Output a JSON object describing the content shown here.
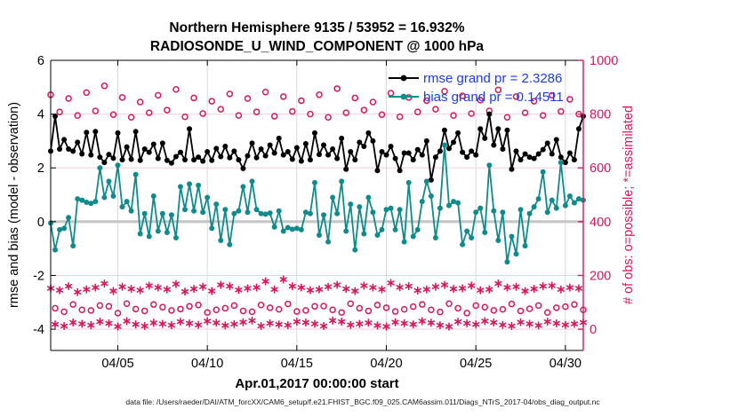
{
  "title": {
    "line1": "Northern Hemisphere 9135 / 53952 = 16.932%",
    "line2": "RADIOSONDE_U_WIND_COMPONENT @ 1000 hPa"
  },
  "xlabel": "Apr.01,2017 00:00:00 start",
  "ylabel_left": "rmse and bias (model - observation)",
  "ylabel_right": "# of obs: o=possible; *=assimilated",
  "caption": "data file: /Users/raeder/DAI/ATM_forcXX/CAM6_setup/f.e21.FHIST_BGC.f09_025.CAM6assim.011/Diags_NTrS_2017-04/obs_diag_output.nc",
  "legend": {
    "entries": [
      {
        "label": "rmse grand pr = 2.3286",
        "series": "rmse",
        "color": "#000000"
      },
      {
        "label": "bias grand pr = 0.14511",
        "series": "bias",
        "color": "#0f8b8b"
      }
    ],
    "text_color": "#1b3af0"
  },
  "colors": {
    "counts": "#d8175a",
    "rmse": "#000000",
    "bias": "#0f8b8b",
    "grid_vertical": "#d6d6d6",
    "grid_horizontal": "#f6cdd9",
    "zero_line": "#c6c6c6",
    "axis_left": "#000000",
    "axis_right": "#d8175a",
    "legend_text": "#1b3af0"
  },
  "chart_data": {
    "type": "line",
    "time_axis": {
      "start_day_of_april": 1.25,
      "step_days": 0.25,
      "n_points": 120,
      "ticks_day_of_april": [
        5,
        10,
        15,
        20,
        25,
        30
      ],
      "tick_labels": [
        "04/05",
        "04/10",
        "04/15",
        "04/20",
        "04/25",
        "04/30"
      ],
      "range_days": [
        1.25,
        31.0
      ]
    },
    "y_left": {
      "ticks": [
        6,
        4,
        2,
        0,
        -2,
        -4
      ],
      "tick_labels": [
        "6",
        "4",
        "2",
        "0",
        "-2",
        "-4"
      ],
      "range": [
        -4.79,
        6
      ]
    },
    "y_right": {
      "ticks": [
        1000,
        800,
        600,
        400,
        200,
        0
      ],
      "tick_labels": [
        "1000",
        "800",
        "600",
        "400",
        "200",
        "0"
      ],
      "range": [
        -79,
        1000
      ]
    },
    "grid": {
      "vertical_at_x_ticks": true,
      "horizontal_pink_at_left_ticks": [
        4,
        2,
        -2,
        -4
      ],
      "bold_zero_line": 0
    },
    "series": [
      {
        "name": "rmse",
        "axis": "left",
        "style": "line-dot",
        "color": "#000000",
        "values": [
          2.62,
          3.92,
          2.7,
          3.05,
          2.7,
          2.62,
          2.95,
          2.52,
          3.32,
          2.48,
          3.35,
          2.4,
          2.2,
          2.5,
          2.36,
          3.3,
          2.3,
          2.78,
          2.32,
          3.35,
          2.28,
          2.7,
          2.58,
          2.88,
          2.35,
          2.92,
          2.28,
          2.18,
          2.42,
          2.58,
          2.3,
          3.45,
          2.3,
          2.4,
          2.25,
          2.6,
          2.28,
          2.72,
          2.42,
          2.8,
          2.38,
          2.62,
          2.3,
          1.98,
          2.45,
          2.92,
          2.38,
          2.7,
          2.45,
          2.85,
          2.55,
          3.1,
          2.48,
          2.6,
          2.32,
          2.75,
          2.25,
          2.9,
          2.3,
          3.3,
          2.5,
          2.85,
          2.48,
          2.7,
          2.35,
          3.1,
          1.95,
          2.6,
          2.3,
          2.95,
          2.8,
          3.3,
          3.0,
          1.9,
          2.6,
          2.48,
          2.8,
          2.35,
          1.9,
          2.55,
          2.55,
          2.3,
          2.68,
          2.48,
          3.0,
          1.55,
          2.4,
          2.62,
          3.4,
          2.72,
          2.95,
          3.3,
          2.58,
          2.4,
          2.62,
          2.48,
          3.45,
          3.1,
          4.0,
          2.85,
          3.45,
          2.7,
          3.4,
          1.95,
          2.62,
          2.3,
          2.52,
          2.4,
          2.35,
          2.52,
          2.68,
          2.92,
          2.52,
          3.05,
          2.4,
          2.2,
          2.55,
          2.3,
          3.45,
          3.92
        ]
      },
      {
        "name": "bias",
        "axis": "left",
        "style": "line-dot",
        "color": "#0f8b8b",
        "values": [
          -0.05,
          -1.05,
          -0.3,
          -0.25,
          0.15,
          -0.9,
          0.85,
          0.8,
          0.72,
          0.68,
          0.75,
          2.0,
          0.9,
          1.5,
          0.95,
          2.1,
          0.55,
          0.75,
          0.4,
          1.75,
          -0.45,
          0.3,
          -0.55,
          0.95,
          -0.35,
          0.3,
          -0.4,
          0.25,
          -0.6,
          1.3,
          0.45,
          1.4,
          0.4,
          1.35,
          0.35,
          0.9,
          -0.25,
          0.65,
          -0.7,
          0.45,
          -0.85,
          0.3,
          0.4,
          1.3,
          0.35,
          1.5,
          0.45,
          0.3,
          0.28,
          0.32,
          -0.2,
          0.4,
          -0.35,
          -0.22,
          -0.28,
          -0.25,
          -0.3,
          0.35,
          0.3,
          1.45,
          -0.5,
          0.25,
          -0.75,
          0.9,
          0.3,
          1.5,
          -0.35,
          0.65,
          -1.05,
          0.55,
          -0.45,
          0.9,
          0.35,
          -0.5,
          -0.3,
          0.45,
          0.5,
          -0.3,
          0.45,
          -0.75,
          1.45,
          -0.55,
          -0.3,
          0.75,
          1.5,
          0.95,
          -0.6,
          0.5,
          2.85,
          0.6,
          0.75,
          0.7,
          -0.85,
          -0.35,
          -0.6,
          0.35,
          0.5,
          -0.4,
          2.1,
          0.4,
          -0.7,
          0.35,
          -1.5,
          -0.55,
          -1.2,
          0.45,
          -0.9,
          0.3,
          0.55,
          0.85,
          1.85,
          0.35,
          0.8,
          0.5,
          2.2,
          0.6,
          0.95,
          0.7,
          0.85,
          0.8
        ]
      },
      {
        "name": "possible",
        "axis": "right",
        "style": "open-circle",
        "color": "#d8175a",
        "values": [
          872,
          78,
          808,
          65,
          858,
          92,
          795,
          72,
          880,
          70,
          812,
          88,
          905,
          85,
          798,
          60,
          862,
          95,
          788,
          75,
          845,
          68,
          805,
          92,
          870,
          82,
          815,
          70,
          892,
          75,
          790,
          85,
          860,
          90,
          802,
          62,
          848,
          72,
          818,
          78,
          875,
          88,
          795,
          68,
          858,
          65,
          808,
          90,
          882,
          80,
          792,
          74,
          865,
          94,
          810,
          66,
          850,
          70,
          800,
          85,
          872,
          86,
          788,
          72,
          895,
          62,
          805,
          95,
          860,
          78,
          815,
          68,
          845,
          90,
          798,
          80,
          878,
          66,
          790,
          74,
          862,
          84,
          808,
          92,
          850,
          72,
          818,
          64,
          885,
          95,
          795,
          78,
          868,
          60,
          802,
          88,
          852,
          82,
          812,
          70,
          890,
          74,
          788,
          94,
          865,
          68,
          805,
          76,
          848,
          88,
          795,
          62,
          870,
          80,
          810,
          84,
          855,
          92,
          800,
          72
        ]
      },
      {
        "name": "assimilated",
        "axis": "right",
        "style": "asterisk",
        "color": "#d8175a",
        "values": [
          152,
          18,
          145,
          12,
          160,
          25,
          138,
          20,
          148,
          15,
          155,
          28,
          170,
          22,
          142,
          10,
          158,
          30,
          150,
          18,
          145,
          12,
          162,
          24,
          155,
          20,
          148,
          15,
          168,
          28,
          140,
          22,
          150,
          16,
          158,
          30,
          142,
          24,
          165,
          14,
          160,
          19,
          146,
          26,
          152,
          32,
          155,
          12,
          178,
          22,
          148,
          18,
          185,
          15,
          160,
          28,
          155,
          25,
          145,
          20,
          148,
          12,
          158,
          32,
          165,
          28,
          150,
          16,
          142,
          20,
          162,
          24,
          155,
          14,
          148,
          10,
          172,
          26,
          156,
          22,
          160,
          18,
          144,
          30,
          148,
          24,
          158,
          15,
          165,
          10,
          150,
          28,
          152,
          22,
          162,
          18,
          145,
          30,
          148,
          25,
          170,
          16,
          155,
          12,
          158,
          26,
          142,
          20,
          150,
          14,
          160,
          28,
          162,
          22,
          148,
          16,
          155,
          20,
          152,
          25
        ]
      }
    ]
  }
}
